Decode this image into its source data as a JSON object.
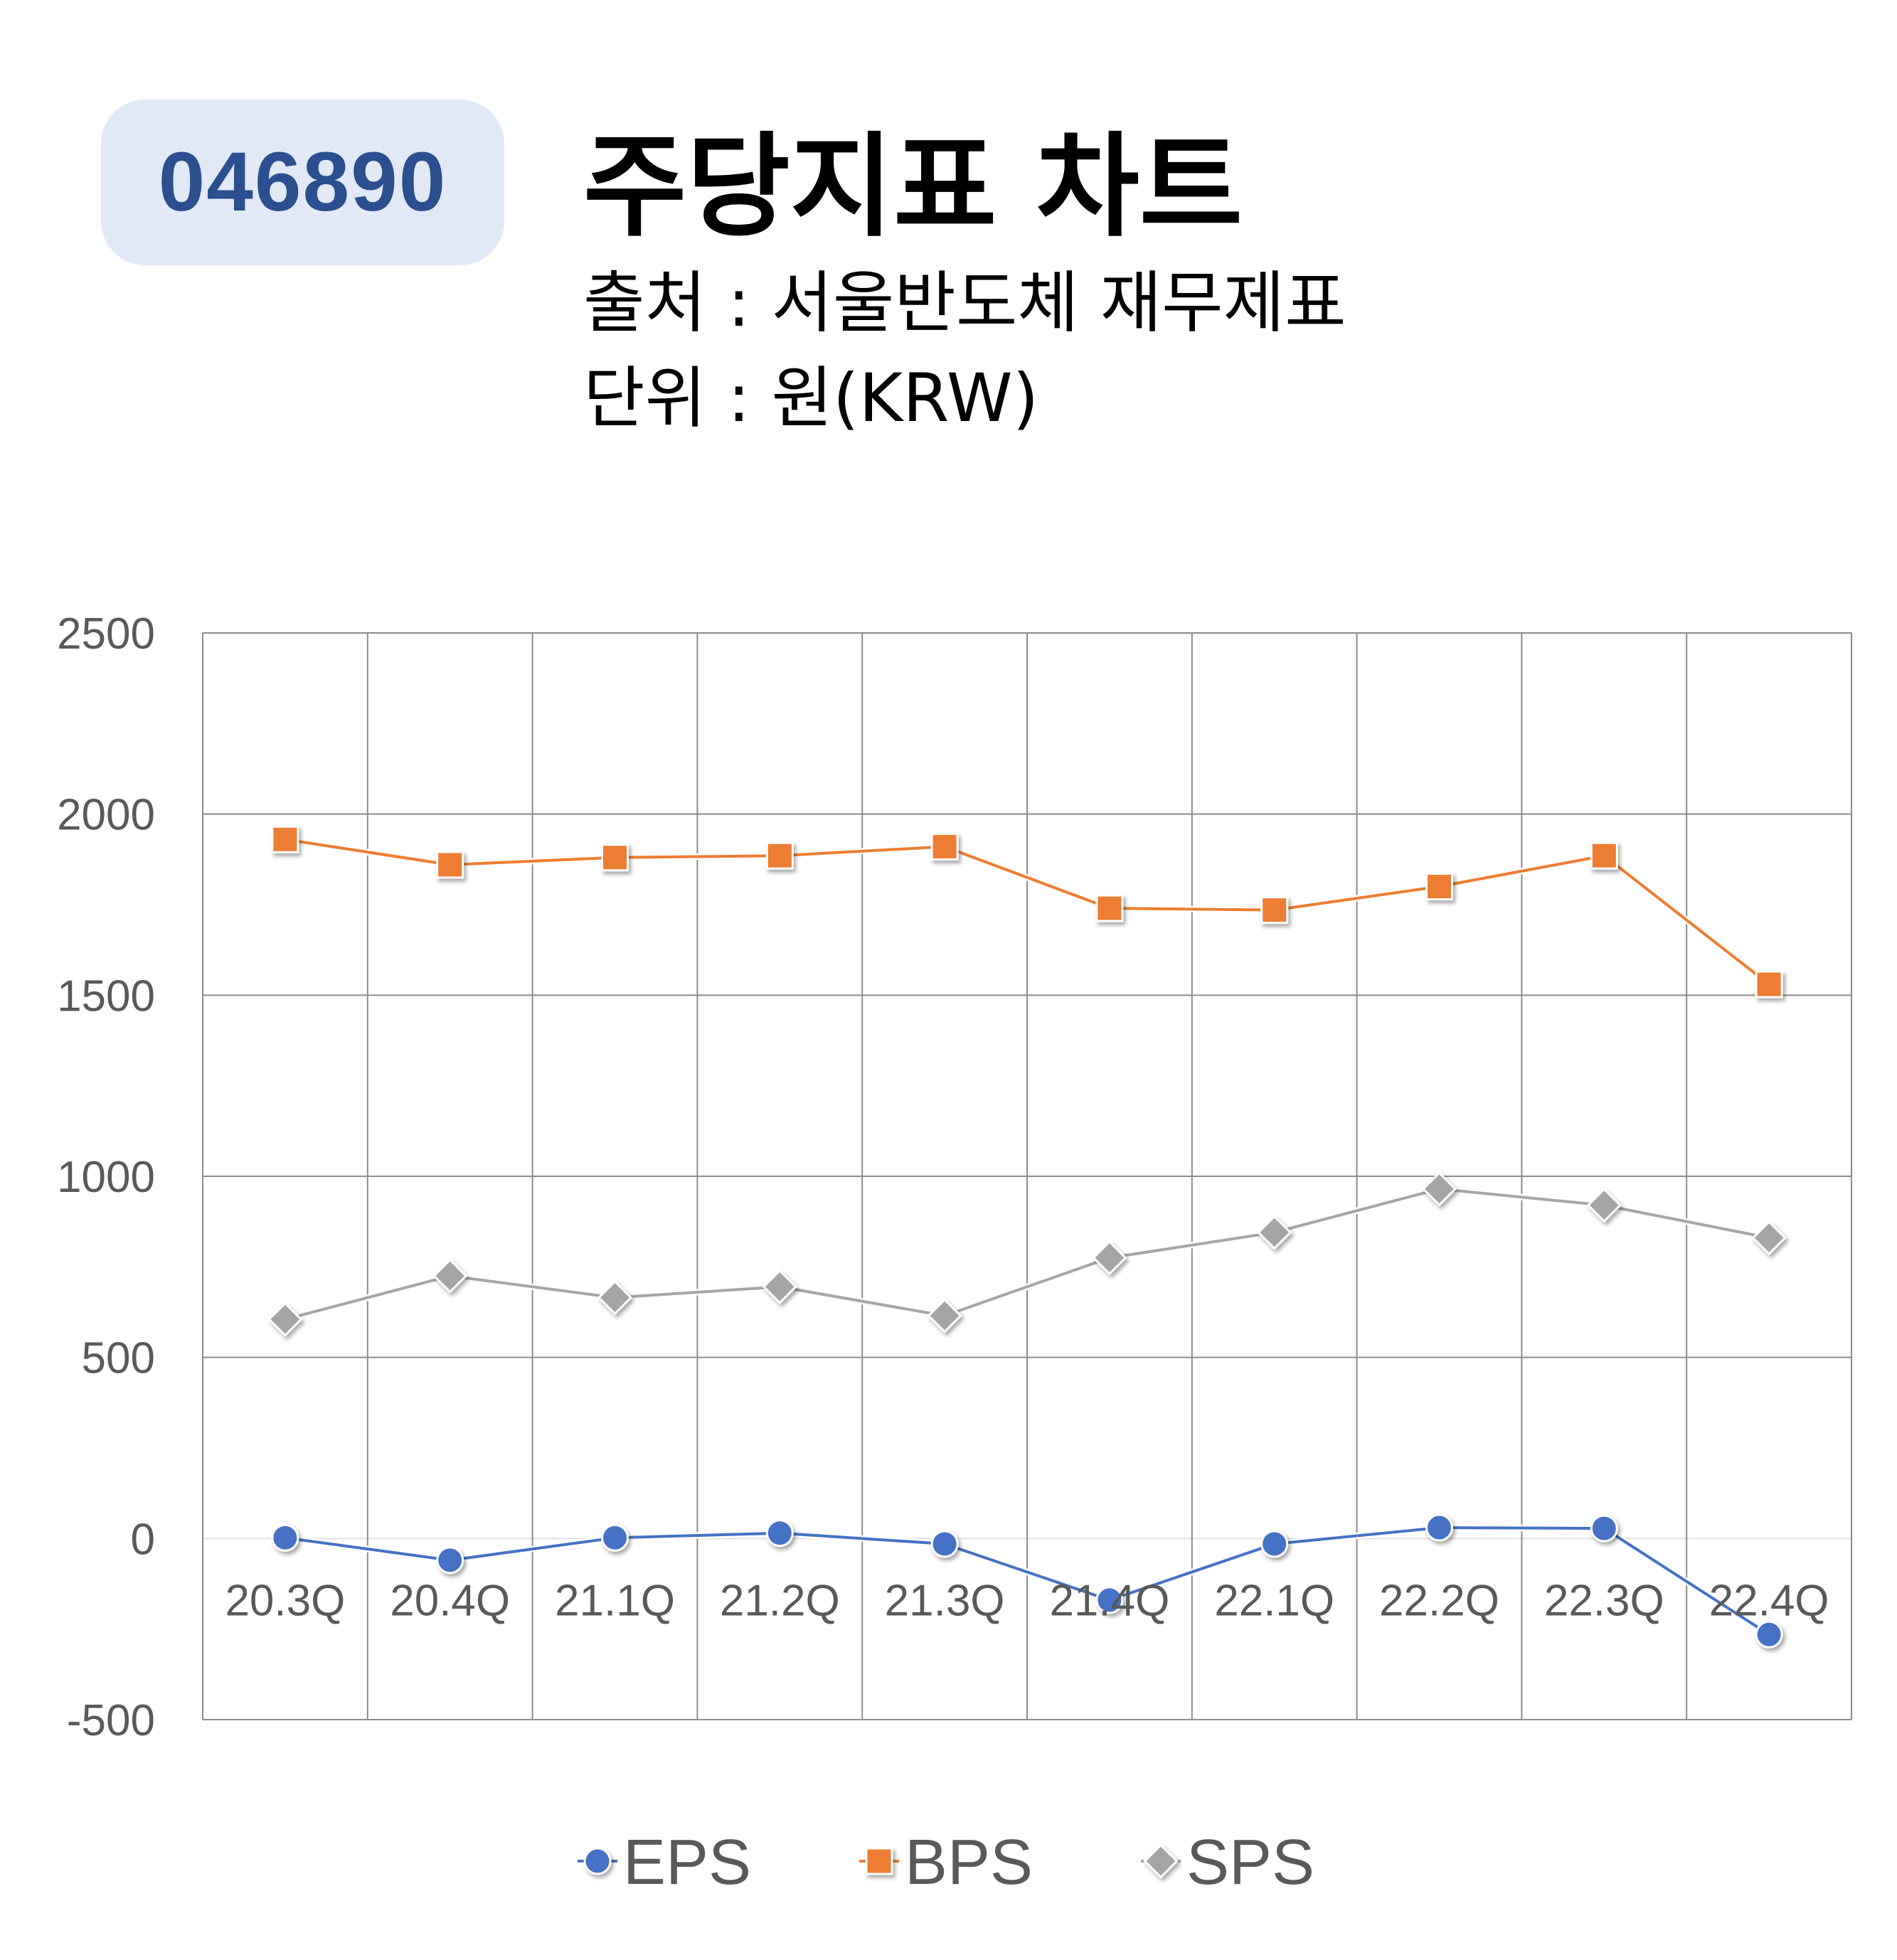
{
  "header": {
    "code": "046890",
    "title": "주당지표 차트",
    "source": "출처 : 서울반도체 재무제표",
    "unit": "단위 : 원(KRW)"
  },
  "chart_data": {
    "type": "line",
    "categories": [
      "20.3Q",
      "20.4Q",
      "21.1Q",
      "21.2Q",
      "21.3Q",
      "21.4Q",
      "22.1Q",
      "22.2Q",
      "22.3Q",
      "22.4Q"
    ],
    "series": [
      {
        "name": "EPS",
        "color": "#4472c4",
        "marker": "circle",
        "values": [
          2,
          -60,
          2,
          15,
          -15,
          -170,
          -15,
          30,
          28,
          -265
        ]
      },
      {
        "name": "BPS",
        "color": "#ed7d31",
        "marker": "square",
        "values": [
          1930,
          1860,
          1880,
          1885,
          1910,
          1740,
          1735,
          1800,
          1885,
          1530
        ]
      },
      {
        "name": "SPS",
        "color": "#a5a5a5",
        "marker": "diamond",
        "values": [
          605,
          725,
          665,
          695,
          615,
          775,
          845,
          965,
          920,
          830
        ]
      }
    ],
    "ylim": [
      -500,
      2500
    ],
    "yticks": [
      -500,
      0,
      500,
      1000,
      1500,
      2000,
      2500
    ],
    "grid": true,
    "legend": "bottom"
  }
}
